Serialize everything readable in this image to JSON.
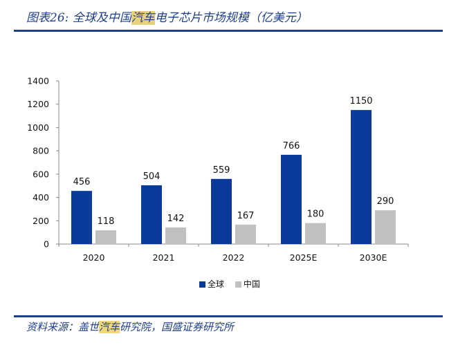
{
  "header": {
    "title_prefix": "图表26:  全球及中国",
    "title_highlight": "汽车",
    "title_suffix": "电子芯片市场规模（亿美元）"
  },
  "footer": {
    "source_prefix": "资料来源：盖世",
    "source_highlight": "汽车",
    "source_suffix": "研究院，国盛证券研究所"
  },
  "chart_data": {
    "type": "bar",
    "title": "",
    "xlabel": "",
    "ylabel": "",
    "ylim": [
      0,
      1400
    ],
    "yticks": [
      0,
      200,
      400,
      600,
      800,
      1000,
      1200,
      1400
    ],
    "categories": [
      "2020",
      "2021",
      "2022",
      "2025E",
      "2030E"
    ],
    "series": [
      {
        "name": "全球",
        "color": "#0a3a9a",
        "values": [
          456,
          504,
          559,
          766,
          1150
        ]
      },
      {
        "name": "中国",
        "color": "#c0c0c0",
        "values": [
          118,
          142,
          167,
          180,
          290
        ]
      }
    ],
    "legend_position": "bottom",
    "grid": false
  }
}
